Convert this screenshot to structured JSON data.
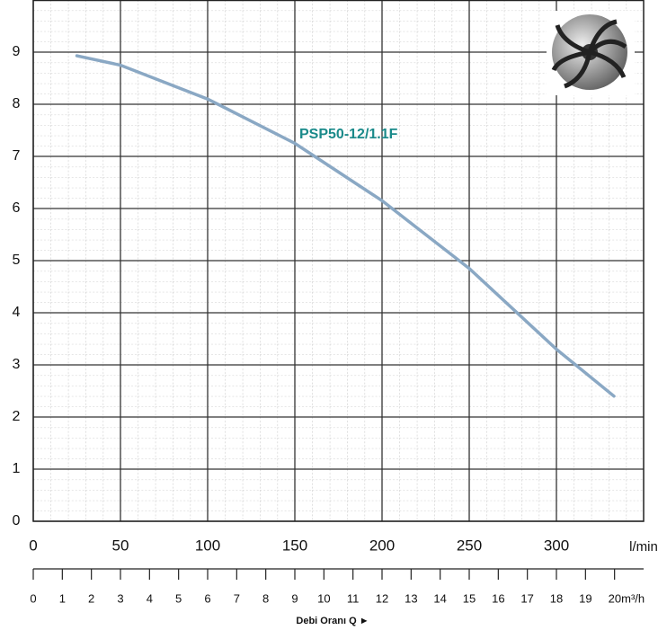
{
  "chart_data": {
    "type": "line",
    "x": [
      25,
      50,
      100,
      150,
      200,
      250,
      300,
      333
    ],
    "series": [
      {
        "name": "PSP50-12/1.1F",
        "color": "#8aa8c4",
        "values": [
          8.93,
          8.75,
          8.1,
          7.25,
          6.15,
          4.85,
          3.3,
          2.4
        ]
      }
    ],
    "xlim": [
      0,
      350
    ],
    "xticks": [
      0,
      50,
      100,
      150,
      200,
      250,
      300
    ],
    "x_unit": "l/min",
    "ylim": [
      0,
      10
    ],
    "yticks": [
      0,
      1,
      2,
      3,
      4,
      5,
      6,
      7,
      8,
      9
    ],
    "x2lim": [
      0,
      21
    ],
    "x2ticks": [
      0,
      1,
      2,
      3,
      4,
      5,
      6,
      7,
      8,
      9,
      10,
      11,
      12,
      13,
      14,
      15,
      16,
      17,
      18,
      19,
      {
        "value": 20,
        "label": "20m³/h"
      }
    ],
    "x2_label": "Debi Oranı Q ►",
    "grid": true
  }
}
